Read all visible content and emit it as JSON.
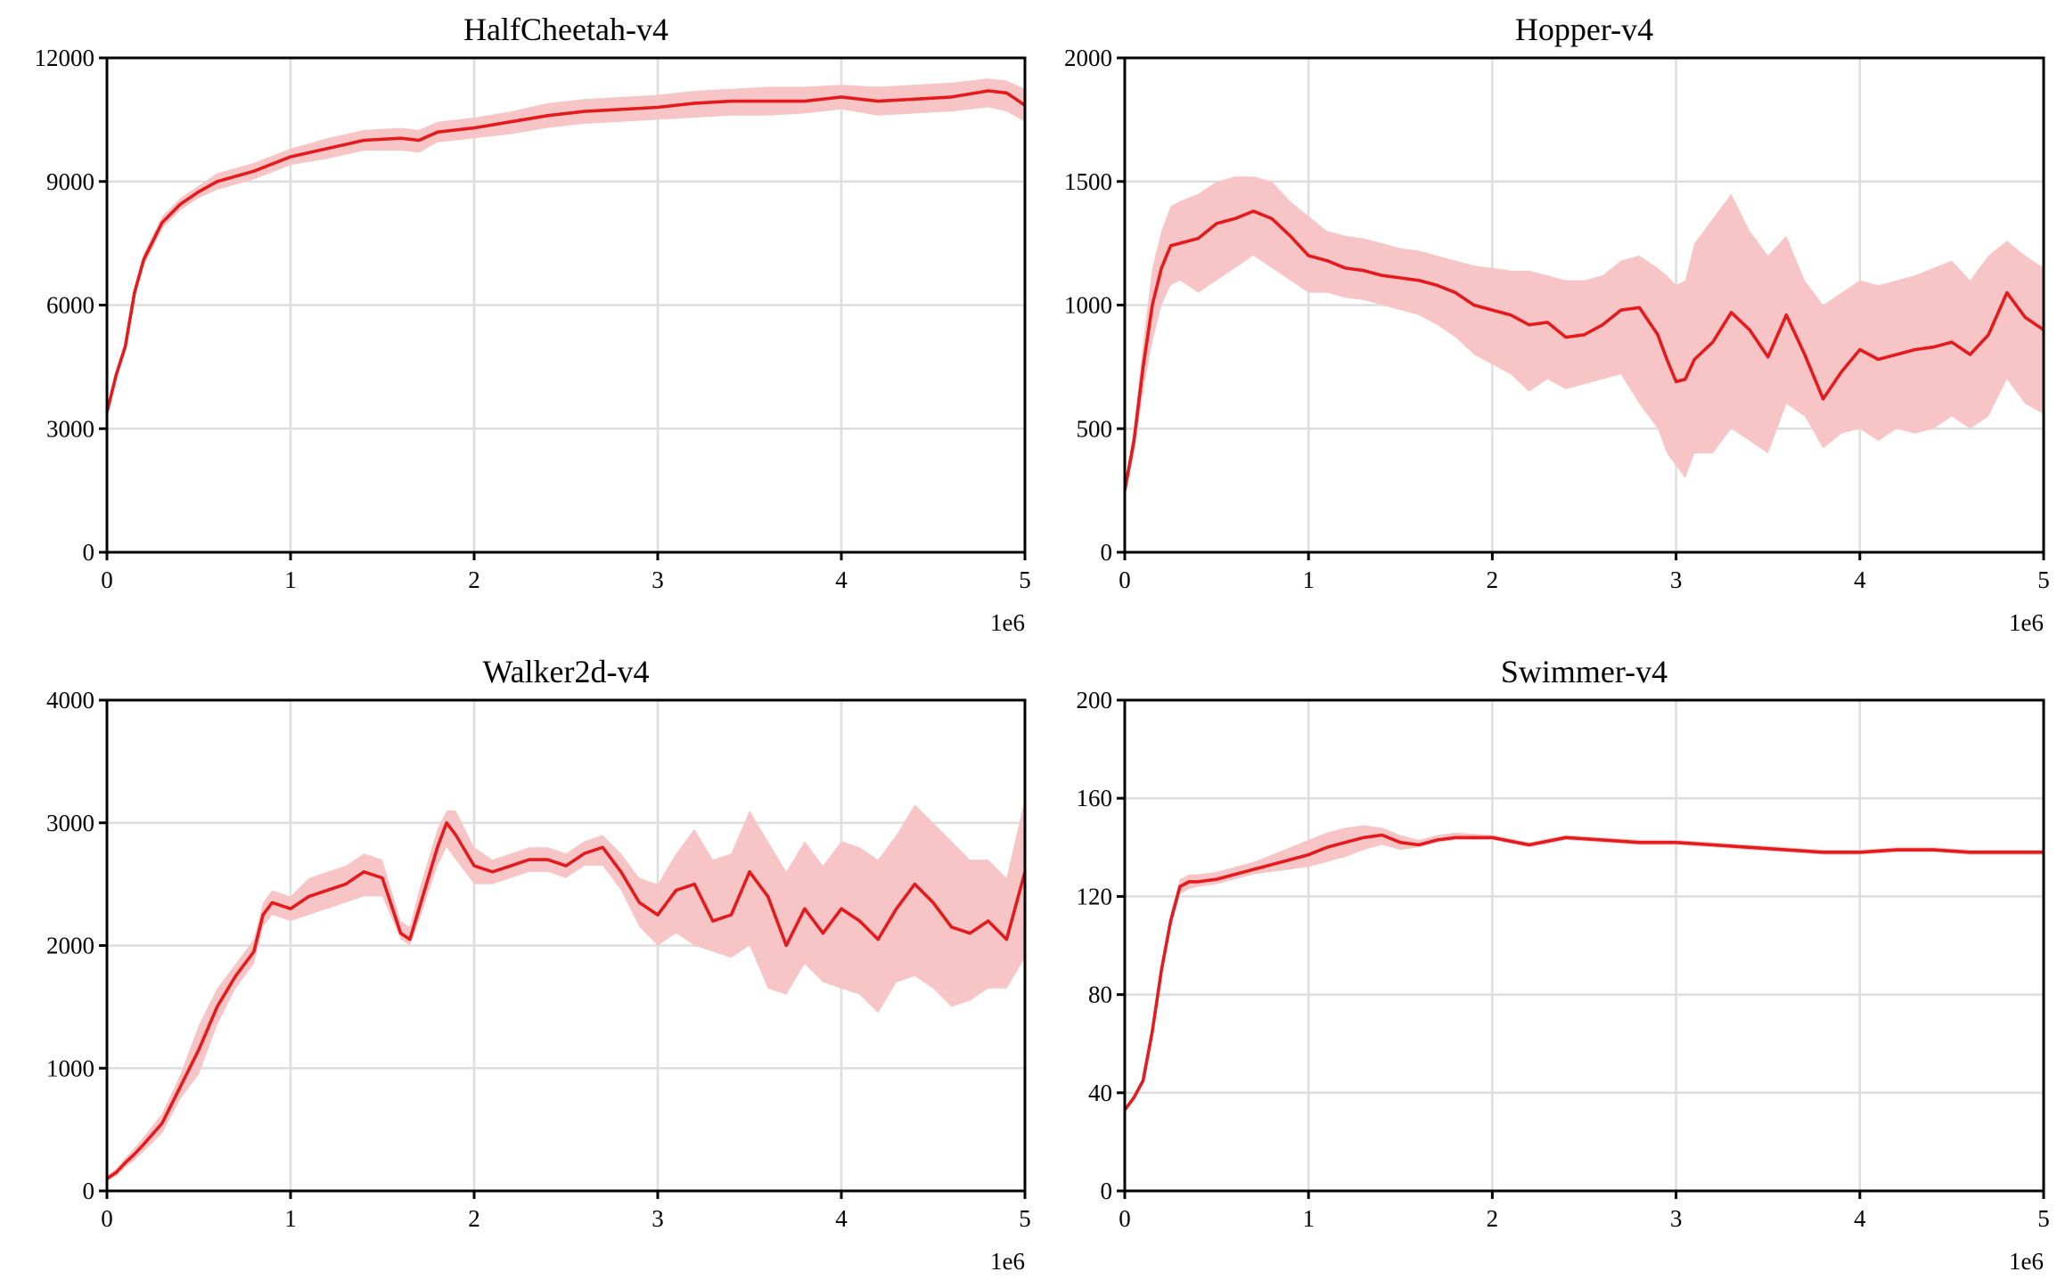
{
  "colors": {
    "line": "#e41a1c",
    "band": "#f8c5c7",
    "grid": "#dddddd"
  },
  "chart_data": [
    {
      "type": "line",
      "title": "HalfCheetah-v4",
      "xlabel": "",
      "ylabel": "",
      "x_offset_label": "1e6",
      "xlim": [
        0,
        5
      ],
      "ylim": [
        0,
        12000
      ],
      "xticks": [
        0,
        1,
        2,
        3,
        4,
        5
      ],
      "yticks": [
        0,
        3000,
        6000,
        9000,
        12000
      ],
      "grid": true,
      "x": [
        0,
        0.05,
        0.1,
        0.15,
        0.2,
        0.3,
        0.4,
        0.5,
        0.6,
        0.8,
        1.0,
        1.2,
        1.4,
        1.6,
        1.7,
        1.8,
        2.0,
        2.2,
        2.4,
        2.6,
        2.8,
        3.0,
        3.2,
        3.4,
        3.6,
        3.8,
        4.0,
        4.2,
        4.4,
        4.6,
        4.8,
        4.9,
        5.0
      ],
      "series": [
        {
          "y": [
            3400,
            4300,
            5000,
            6300,
            7100,
            8000,
            8450,
            8750,
            9000,
            9250,
            9600,
            9800,
            10000,
            10050,
            10000,
            10200,
            10300,
            10450,
            10600,
            10700,
            10750,
            10800,
            10900,
            10950,
            10950,
            10950,
            11050,
            10950,
            11000,
            11050,
            11200,
            11150,
            10850
          ],
          "lower": [
            3300,
            4200,
            4900,
            6150,
            6950,
            7850,
            8300,
            8600,
            8800,
            9050,
            9400,
            9550,
            9750,
            9750,
            9700,
            9950,
            10050,
            10150,
            10300,
            10400,
            10450,
            10500,
            10550,
            10600,
            10600,
            10650,
            10750,
            10600,
            10650,
            10700,
            10800,
            10700,
            10450
          ],
          "upper": [
            3500,
            4400,
            5100,
            6450,
            7250,
            8150,
            8600,
            8900,
            9200,
            9450,
            9800,
            10050,
            10250,
            10300,
            10250,
            10450,
            10550,
            10700,
            10900,
            11000,
            11050,
            11100,
            11200,
            11250,
            11300,
            11300,
            11350,
            11300,
            11350,
            11400,
            11500,
            11450,
            11250
          ]
        }
      ]
    },
    {
      "type": "line",
      "title": "Hopper-v4",
      "xlabel": "",
      "ylabel": "",
      "x_offset_label": "1e6",
      "xlim": [
        0,
        5
      ],
      "ylim": [
        0,
        2000
      ],
      "xticks": [
        0,
        1,
        2,
        3,
        4,
        5
      ],
      "yticks": [
        0,
        500,
        1000,
        1500,
        2000
      ],
      "grid": true,
      "x": [
        0,
        0.05,
        0.1,
        0.15,
        0.2,
        0.25,
        0.3,
        0.4,
        0.5,
        0.6,
        0.7,
        0.8,
        0.9,
        1.0,
        1.1,
        1.2,
        1.3,
        1.4,
        1.5,
        1.6,
        1.7,
        1.8,
        1.9,
        2.0,
        2.1,
        2.2,
        2.3,
        2.4,
        2.5,
        2.6,
        2.7,
        2.8,
        2.9,
        2.95,
        3.0,
        3.05,
        3.1,
        3.2,
        3.3,
        3.4,
        3.5,
        3.6,
        3.7,
        3.8,
        3.9,
        4.0,
        4.1,
        4.2,
        4.3,
        4.4,
        4.5,
        4.6,
        4.7,
        4.8,
        4.9,
        5.0
      ],
      "series": [
        {
          "y": [
            250,
            450,
            750,
            1000,
            1150,
            1240,
            1250,
            1270,
            1330,
            1350,
            1380,
            1350,
            1280,
            1200,
            1180,
            1150,
            1140,
            1120,
            1110,
            1100,
            1080,
            1050,
            1000,
            980,
            960,
            920,
            930,
            870,
            880,
            920,
            980,
            990,
            880,
            780,
            690,
            700,
            780,
            850,
            970,
            900,
            790,
            960,
            800,
            620,
            730,
            820,
            780,
            800,
            820,
            830,
            850,
            800,
            880,
            1050,
            950,
            900
          ],
          "lower": [
            220,
            400,
            650,
            850,
            1000,
            1080,
            1100,
            1050,
            1100,
            1150,
            1200,
            1150,
            1100,
            1050,
            1050,
            1030,
            1020,
            1000,
            980,
            960,
            920,
            870,
            800,
            760,
            720,
            650,
            700,
            660,
            680,
            700,
            720,
            600,
            500,
            400,
            350,
            300,
            400,
            400,
            500,
            450,
            400,
            600,
            550,
            420,
            480,
            500,
            450,
            500,
            480,
            500,
            550,
            500,
            550,
            700,
            600,
            560
          ],
          "upper": [
            280,
            500,
            850,
            1150,
            1300,
            1400,
            1420,
            1450,
            1500,
            1520,
            1520,
            1500,
            1420,
            1360,
            1300,
            1280,
            1270,
            1250,
            1230,
            1220,
            1200,
            1180,
            1160,
            1150,
            1140,
            1140,
            1120,
            1100,
            1100,
            1120,
            1180,
            1200,
            1150,
            1120,
            1080,
            1100,
            1250,
            1350,
            1450,
            1300,
            1200,
            1280,
            1100,
            1000,
            1050,
            1100,
            1080,
            1100,
            1120,
            1150,
            1180,
            1100,
            1200,
            1260,
            1200,
            1150
          ]
        }
      ]
    },
    {
      "type": "line",
      "title": "Walker2d-v4",
      "xlabel": "",
      "ylabel": "",
      "x_offset_label": "1e6",
      "xlim": [
        0,
        5
      ],
      "ylim": [
        0,
        4000
      ],
      "xticks": [
        0,
        1,
        2,
        3,
        4,
        5
      ],
      "yticks": [
        0,
        1000,
        2000,
        3000,
        4000
      ],
      "grid": true,
      "x": [
        0,
        0.05,
        0.1,
        0.15,
        0.2,
        0.3,
        0.4,
        0.5,
        0.6,
        0.7,
        0.8,
        0.85,
        0.9,
        1.0,
        1.1,
        1.2,
        1.3,
        1.4,
        1.5,
        1.6,
        1.65,
        1.7,
        1.8,
        1.85,
        1.9,
        2.0,
        2.1,
        2.2,
        2.3,
        2.4,
        2.5,
        2.6,
        2.7,
        2.8,
        2.9,
        3.0,
        3.1,
        3.2,
        3.3,
        3.4,
        3.5,
        3.6,
        3.7,
        3.8,
        3.9,
        4.0,
        4.1,
        4.2,
        4.3,
        4.4,
        4.5,
        4.6,
        4.7,
        4.8,
        4.9,
        5.0
      ],
      "series": [
        {
          "y": [
            100,
            150,
            230,
            300,
            380,
            550,
            850,
            1150,
            1500,
            1750,
            1950,
            2250,
            2350,
            2300,
            2400,
            2450,
            2500,
            2600,
            2550,
            2100,
            2050,
            2300,
            2800,
            3000,
            2900,
            2650,
            2600,
            2650,
            2700,
            2700,
            2650,
            2750,
            2800,
            2600,
            2350,
            2250,
            2450,
            2500,
            2200,
            2250,
            2600,
            2400,
            2000,
            2300,
            2100,
            2300,
            2200,
            2050,
            2300,
            2500,
            2350,
            2150,
            2100,
            2200,
            2050,
            2600
          ],
          "lower": [
            80,
            120,
            190,
            250,
            320,
            470,
            750,
            950,
            1350,
            1650,
            1850,
            2150,
            2250,
            2200,
            2250,
            2300,
            2350,
            2400,
            2400,
            2050,
            2000,
            2200,
            2650,
            2800,
            2700,
            2500,
            2500,
            2550,
            2600,
            2600,
            2550,
            2650,
            2650,
            2450,
            2150,
            2000,
            2100,
            2000,
            1950,
            1900,
            2000,
            1650,
            1600,
            1850,
            1700,
            1650,
            1600,
            1450,
            1700,
            1750,
            1650,
            1500,
            1550,
            1650,
            1650,
            1900
          ],
          "upper": [
            120,
            180,
            270,
            350,
            440,
            630,
            950,
            1350,
            1650,
            1850,
            2050,
            2350,
            2450,
            2400,
            2550,
            2600,
            2650,
            2750,
            2700,
            2200,
            2150,
            2450,
            2950,
            3100,
            3100,
            2800,
            2700,
            2750,
            2800,
            2800,
            2750,
            2850,
            2900,
            2750,
            2550,
            2500,
            2750,
            2950,
            2700,
            2750,
            3100,
            2850,
            2600,
            2850,
            2650,
            2850,
            2800,
            2700,
            2900,
            3150,
            3000,
            2850,
            2700,
            2700,
            2550,
            3200
          ]
        }
      ]
    },
    {
      "type": "line",
      "title": "Swimmer-v4",
      "xlabel": "",
      "ylabel": "",
      "x_offset_label": "1e6",
      "xlim": [
        0,
        5
      ],
      "ylim": [
        0,
        200
      ],
      "xticks": [
        0,
        1,
        2,
        3,
        4,
        5
      ],
      "yticks": [
        0,
        40,
        80,
        120,
        160,
        200
      ],
      "grid": true,
      "x": [
        0,
        0.05,
        0.1,
        0.15,
        0.2,
        0.25,
        0.3,
        0.35,
        0.4,
        0.5,
        0.6,
        0.7,
        0.8,
        0.9,
        1.0,
        1.1,
        1.2,
        1.3,
        1.4,
        1.5,
        1.6,
        1.7,
        1.8,
        2.0,
        2.2,
        2.4,
        2.6,
        2.8,
        3.0,
        3.2,
        3.4,
        3.6,
        3.8,
        4.0,
        4.2,
        4.4,
        4.6,
        4.8,
        5.0
      ],
      "series": [
        {
          "y": [
            33,
            38,
            45,
            65,
            90,
            110,
            124,
            126,
            126,
            127,
            129,
            131,
            133,
            135,
            137,
            140,
            142,
            144,
            145,
            142,
            141,
            143,
            144,
            144,
            141,
            144,
            143,
            142,
            142,
            141,
            140,
            139,
            138,
            138,
            139,
            139,
            138,
            138,
            138
          ],
          "lower": [
            32,
            37,
            44,
            63,
            87,
            107,
            121,
            123,
            124,
            125,
            127,
            129,
            130,
            131,
            132,
            134,
            136,
            139,
            141,
            139,
            140,
            142,
            143,
            143,
            140,
            143,
            142,
            141,
            141,
            140,
            139,
            138,
            137,
            137,
            138,
            138,
            137,
            137,
            137
          ],
          "upper": [
            34,
            39,
            46,
            67,
            93,
            113,
            127,
            129,
            129,
            130,
            132,
            134,
            137,
            140,
            143,
            146,
            148,
            149,
            148,
            145,
            143,
            145,
            146,
            145,
            142,
            145,
            144,
            143,
            143,
            142,
            141,
            140,
            139,
            139,
            140,
            140,
            139,
            139,
            139
          ]
        }
      ]
    }
  ]
}
